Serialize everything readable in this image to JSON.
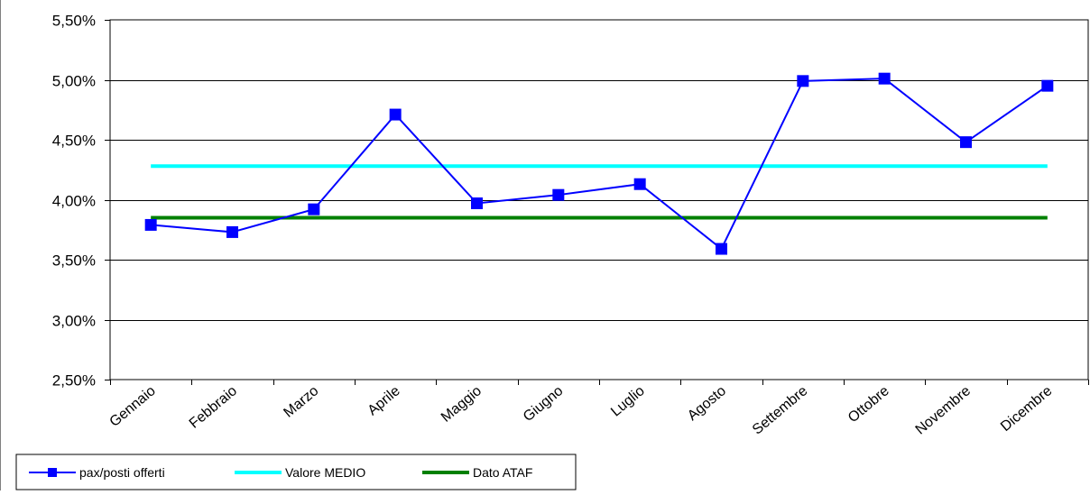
{
  "chart_data": {
    "type": "line",
    "categories": [
      "Gennaio",
      "Febbraio",
      "Marzo",
      "Aprile",
      "Maggio",
      "Giugno",
      "Luglio",
      "Agosto",
      "Settembre",
      "Ottobre",
      "Novembre",
      "Dicembre"
    ],
    "series": [
      {
        "name": "pax/posti offerti",
        "color": "#0000ff",
        "marker": "square",
        "values": [
          3.79,
          3.73,
          3.92,
          4.71,
          3.97,
          4.04,
          4.13,
          3.59,
          4.99,
          5.01,
          4.48,
          4.95
        ]
      },
      {
        "name": "Valore MEDIO",
        "color": "#00ffff",
        "marker": "none",
        "values": [
          4.28,
          4.28,
          4.28,
          4.28,
          4.28,
          4.28,
          4.28,
          4.28,
          4.28,
          4.28,
          4.28,
          4.28
        ]
      },
      {
        "name": "Dato ATAF",
        "color": "#008000",
        "marker": "none",
        "values": [
          3.85,
          3.85,
          3.85,
          3.85,
          3.85,
          3.85,
          3.85,
          3.85,
          3.85,
          3.85,
          3.85,
          3.85
        ]
      }
    ],
    "ylim": [
      2.5,
      5.5
    ],
    "yticks": [
      2.5,
      3.0,
      3.5,
      4.0,
      4.5,
      5.0,
      5.5
    ],
    "ytick_labels": [
      "2,50%",
      "3,00%",
      "3,50%",
      "4,00%",
      "4,50%",
      "5,00%",
      "5,50%"
    ],
    "grid": true,
    "legend_position": "bottom-left",
    "title": "",
    "xlabel": "",
    "ylabel": ""
  }
}
